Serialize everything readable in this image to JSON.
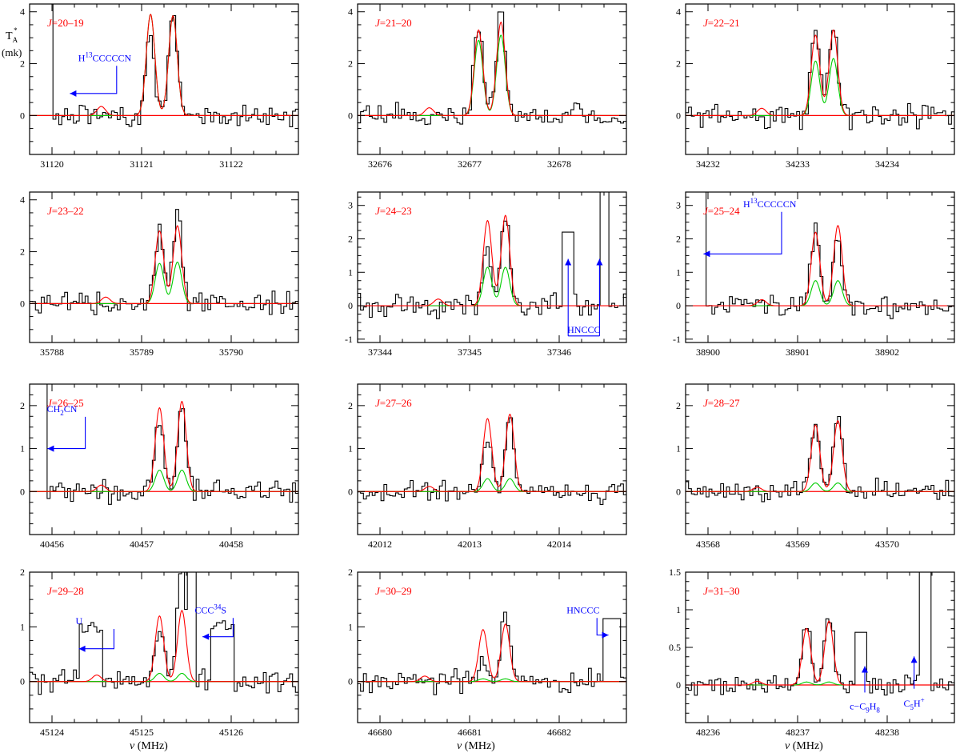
{
  "figure": {
    "y_axis_label_main": "T",
    "y_axis_label_sub": "A",
    "y_axis_label_sup": "*",
    "y_axis_unit": "(mk)",
    "x_axis_label_sym": "ν",
    "x_axis_label_unit": "(MHz)"
  },
  "colors": {
    "observed": "#000000",
    "model_total": "#ff0000",
    "model_component": "#00cc00",
    "baseline": "#ff0000",
    "transition_label": "#ff0000",
    "annotation": "#0000ff"
  },
  "chart_data": [
    {
      "type": "line",
      "transition": "J=20–19",
      "xlim": [
        31119.75,
        31122.75
      ],
      "ylim": [
        -1.5,
        4.3
      ],
      "xticks": [
        31120,
        31121,
        31122
      ],
      "yticks": [
        0,
        2,
        4
      ],
      "peaks": [
        31121.1,
        31121.35
      ],
      "red_amp": [
        3.9,
        3.85
      ],
      "green_amp": [
        3.9,
        3.85
      ],
      "small": [
        31120.55,
        0.35
      ],
      "obs_peaks": [
        3.25,
        3.75
      ],
      "annotations": [
        {
          "kind": "left",
          "text": "H13CCCCCN",
          "x": 31120.65,
          "y": 2.1,
          "to": 31120.2,
          "y_line": 0.85
        },
        {
          "kind": "wall",
          "x0": 31119.75,
          "x1": 31120.0
        }
      ]
    },
    {
      "type": "line",
      "transition": "J=21–20",
      "xlim": [
        32675.75,
        32678.75
      ],
      "ylim": [
        -1.5,
        4.3
      ],
      "xticks": [
        32676,
        32677,
        32678
      ],
      "yticks": [
        0,
        2,
        4
      ],
      "peaks": [
        32677.1,
        32677.35
      ],
      "red_amp": [
        3.3,
        3.6
      ],
      "green_amp": [
        2.9,
        3.1
      ],
      "small": [
        32676.55,
        0.3
      ],
      "obs_peaks": [
        3.5,
        4.25
      ],
      "annotations": []
    },
    {
      "type": "line",
      "transition": "J=22–21",
      "xlim": [
        34231.75,
        34234.75
      ],
      "ylim": [
        -1.5,
        4.3
      ],
      "xticks": [
        34232,
        34233,
        34234
      ],
      "yticks": [
        0,
        2,
        4
      ],
      "peaks": [
        34233.2,
        34233.4
      ],
      "red_amp": [
        3.1,
        3.3
      ],
      "green_amp": [
        2.1,
        2.2
      ],
      "small": [
        34232.6,
        0.28
      ],
      "obs_peaks": [
        3.4,
        3.35
      ],
      "annotations": []
    },
    {
      "type": "line",
      "transition": "J=23–22",
      "xlim": [
        35787.75,
        35790.75
      ],
      "ylim": [
        -1.5,
        4.3
      ],
      "xticks": [
        35788,
        35789,
        35790
      ],
      "yticks": [
        0,
        2,
        4
      ],
      "peaks": [
        35789.2,
        35789.4
      ],
      "red_amp": [
        2.8,
        3.0
      ],
      "green_amp": [
        1.55,
        1.6
      ],
      "small": [
        35788.6,
        0.25
      ],
      "obs_peaks": [
        2.9,
        3.6
      ],
      "annotations": []
    },
    {
      "type": "line",
      "transition": "J=24–23",
      "xlim": [
        37343.75,
        37346.75
      ],
      "ylim": [
        -1.1,
        3.4
      ],
      "xticks": [
        37344,
        37345,
        37346
      ],
      "yticks": [
        -1,
        0,
        1,
        2,
        3
      ],
      "peaks": [
        37345.2,
        37345.4
      ],
      "red_amp": [
        2.55,
        2.7
      ],
      "green_amp": [
        1.15,
        1.15
      ],
      "small": [
        37344.65,
        0.2
      ],
      "obs_peaks": [
        1.75,
        2.75
      ],
      "annotations": [
        {
          "kind": "hnccc_up",
          "text": "HNCCC",
          "x1": 37346.1,
          "x2": 37346.45,
          "y_top1": 1.4,
          "y_top2": 1.4,
          "y_bottom": -1.0,
          "y_text": -0.78
        },
        {
          "kind": "tall",
          "x0": 37346.45,
          "x1": 37346.55
        }
      ]
    },
    {
      "type": "line",
      "transition": "J=25–24",
      "xlim": [
        38899.75,
        38902.75
      ],
      "ylim": [
        -1.1,
        3.4
      ],
      "xticks": [
        38900,
        38901,
        38902
      ],
      "yticks": [
        -1,
        0,
        1,
        2,
        3
      ],
      "peaks": [
        38901.2,
        38901.45
      ],
      "red_amp": [
        2.2,
        2.4
      ],
      "green_amp": [
        0.75,
        0.75
      ],
      "small": [
        38900.6,
        0.18
      ],
      "obs_peaks": [
        2.25,
        2.05
      ],
      "annotations": [
        {
          "kind": "left",
          "text": "H13CCCCCN",
          "x": 38900.75,
          "y": 2.95,
          "to": 38899.95,
          "y_line": 1.55
        },
        {
          "kind": "wall",
          "x0": 38899.75,
          "x1": 38899.98
        }
      ]
    },
    {
      "type": "line",
      "transition": "J=26–25",
      "xlim": [
        40455.75,
        40458.75
      ],
      "ylim": [
        -1.0,
        2.5
      ],
      "xticks": [
        40456,
        40457,
        40458
      ],
      "yticks": [
        0,
        1,
        2
      ],
      "peaks": [
        40457.2,
        40457.45
      ],
      "red_amp": [
        1.95,
        2.1
      ],
      "green_amp": [
        0.5,
        0.5
      ],
      "small": [
        40456.55,
        0.15
      ],
      "obs_peaks": [
        1.7,
        2.0
      ],
      "annotations": [
        {
          "kind": "left",
          "text": "CH2CN",
          "x": 40456.3,
          "y": 1.85,
          "to": 40455.95,
          "y_line": 1.0
        },
        {
          "kind": "wall",
          "x0": 40455.75,
          "x1": 40455.95
        }
      ]
    },
    {
      "type": "line",
      "transition": "J=27–26",
      "xlim": [
        42011.75,
        42014.75
      ],
      "ylim": [
        -1.0,
        2.5
      ],
      "xticks": [
        42012,
        42013,
        42014
      ],
      "yticks": [
        0,
        1,
        2
      ],
      "peaks": [
        42013.2,
        42013.45
      ],
      "red_amp": [
        1.7,
        1.8
      ],
      "green_amp": [
        0.3,
        0.3
      ],
      "small": [
        42012.55,
        0.12
      ],
      "obs_peaks": [
        1.4,
        1.75
      ],
      "annotations": []
    },
    {
      "type": "line",
      "transition": "J=28–27",
      "xlim": [
        43567.75,
        43570.75
      ],
      "ylim": [
        -1.0,
        2.5
      ],
      "xticks": [
        43568,
        43569,
        43570
      ],
      "yticks": [
        0,
        1,
        2
      ],
      "peaks": [
        43569.2,
        43569.45
      ],
      "red_amp": [
        1.55,
        1.65
      ],
      "green_amp": [
        0.2,
        0.2
      ],
      "small": [
        43568.55,
        0.1
      ],
      "obs_peaks": [
        1.65,
        1.75
      ],
      "annotations": []
    },
    {
      "type": "line",
      "transition": "J=29–28",
      "xlim": [
        45123.75,
        45126.75
      ],
      "ylim": [
        -0.75,
        2.0
      ],
      "xticks": [
        45124,
        45125,
        45126
      ],
      "yticks": [
        0,
        1,
        2
      ],
      "peaks": [
        45125.2,
        45125.45
      ],
      "red_amp": [
        1.2,
        1.3
      ],
      "green_amp": [
        0.15,
        0.15
      ],
      "small": [
        45124.5,
        0.12
      ],
      "obs_peaks": [
        1.05,
        2.3
      ],
      "annotations": [
        {
          "kind": "left",
          "text": "U",
          "x": 45124.62,
          "y": 1.05,
          "to": 45124.3,
          "y_line": 0.6
        },
        {
          "kind": "left",
          "text": "CCC34S",
          "x": 45125.95,
          "y": 1.25,
          "to": 45125.68,
          "y_line": 0.82
        },
        {
          "kind": "tall",
          "x0": 45125.5,
          "x1": 45125.6
        }
      ]
    },
    {
      "type": "line",
      "transition": "J=30–29",
      "xlim": [
        46679.75,
        46682.75
      ],
      "ylim": [
        -0.75,
        2.0
      ],
      "xticks": [
        46680,
        46681,
        46682
      ],
      "yticks": [
        0,
        1,
        2
      ],
      "peaks": [
        46681.15,
        46681.4
      ],
      "red_amp": [
        0.95,
        1.05
      ],
      "green_amp": [
        0.05,
        0.05
      ],
      "small": [
        46680.5,
        0.1
      ],
      "obs_peaks": [
        0.35,
        1.3
      ],
      "annotations": [
        {
          "kind": "right",
          "text": "HNCCC",
          "x": 46682.35,
          "y": 1.25,
          "to": 46682.55,
          "y_line": 0.85
        }
      ]
    },
    {
      "type": "line",
      "transition": "J=31–30",
      "xlim": [
        48235.75,
        48238.75
      ],
      "ylim": [
        -0.5,
        1.5
      ],
      "xticks": [
        48236,
        48237,
        48238
      ],
      "yticks": [
        0,
        0.5,
        1,
        1.5
      ],
      "peaks": [
        48237.1,
        48237.35
      ],
      "red_amp": [
        0.75,
        0.85
      ],
      "green_amp": [
        0.04,
        0.04
      ],
      "small": [
        48236.55,
        0.05
      ],
      "obs_peaks": [
        0.8,
        0.9
      ],
      "annotations": [
        {
          "kind": "up",
          "text": "c-C9H8",
          "x": 48237.75,
          "y_top": 0.25,
          "y_bottom": -0.1,
          "y_text": -0.22
        },
        {
          "kind": "up",
          "text": "C5H+",
          "x": 48238.3,
          "y_top": 0.38,
          "y_bottom": -0.05,
          "y_text": -0.18
        },
        {
          "kind": "tall",
          "x0": 48238.35,
          "x1": 48238.5
        }
      ]
    }
  ]
}
